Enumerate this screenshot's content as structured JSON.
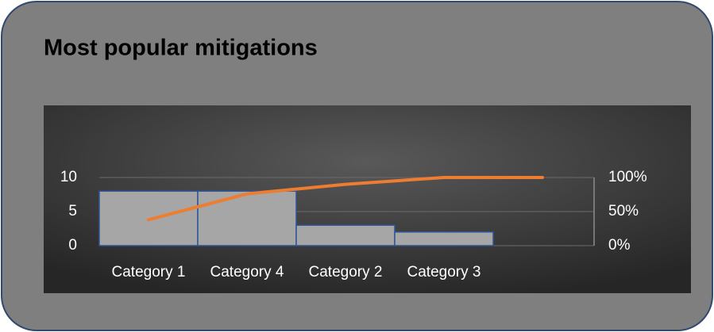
{
  "chart_data": {
    "type": "bar",
    "title": "Most popular mitigations",
    "categories": [
      "Category 1",
      "Category 4",
      "Category 2",
      "Category 3",
      null
    ],
    "series": [
      {
        "type": "bar",
        "color": "#a6a6a6",
        "values": [
          8,
          8,
          3,
          2,
          0
        ]
      },
      {
        "type": "line",
        "axis": "y2",
        "color": "#ed7d31",
        "values": [
          38,
          76,
          90,
          100,
          100
        ]
      }
    ],
    "ylim": [
      0,
      10
    ],
    "yticks": [
      0,
      5,
      10
    ],
    "y2lim": [
      0,
      100
    ],
    "y2ticks": [
      {
        "value": 0,
        "label": "0%"
      },
      {
        "value": 50,
        "label": "50%"
      },
      {
        "value": 100,
        "label": "100%"
      }
    ],
    "grid": true
  }
}
